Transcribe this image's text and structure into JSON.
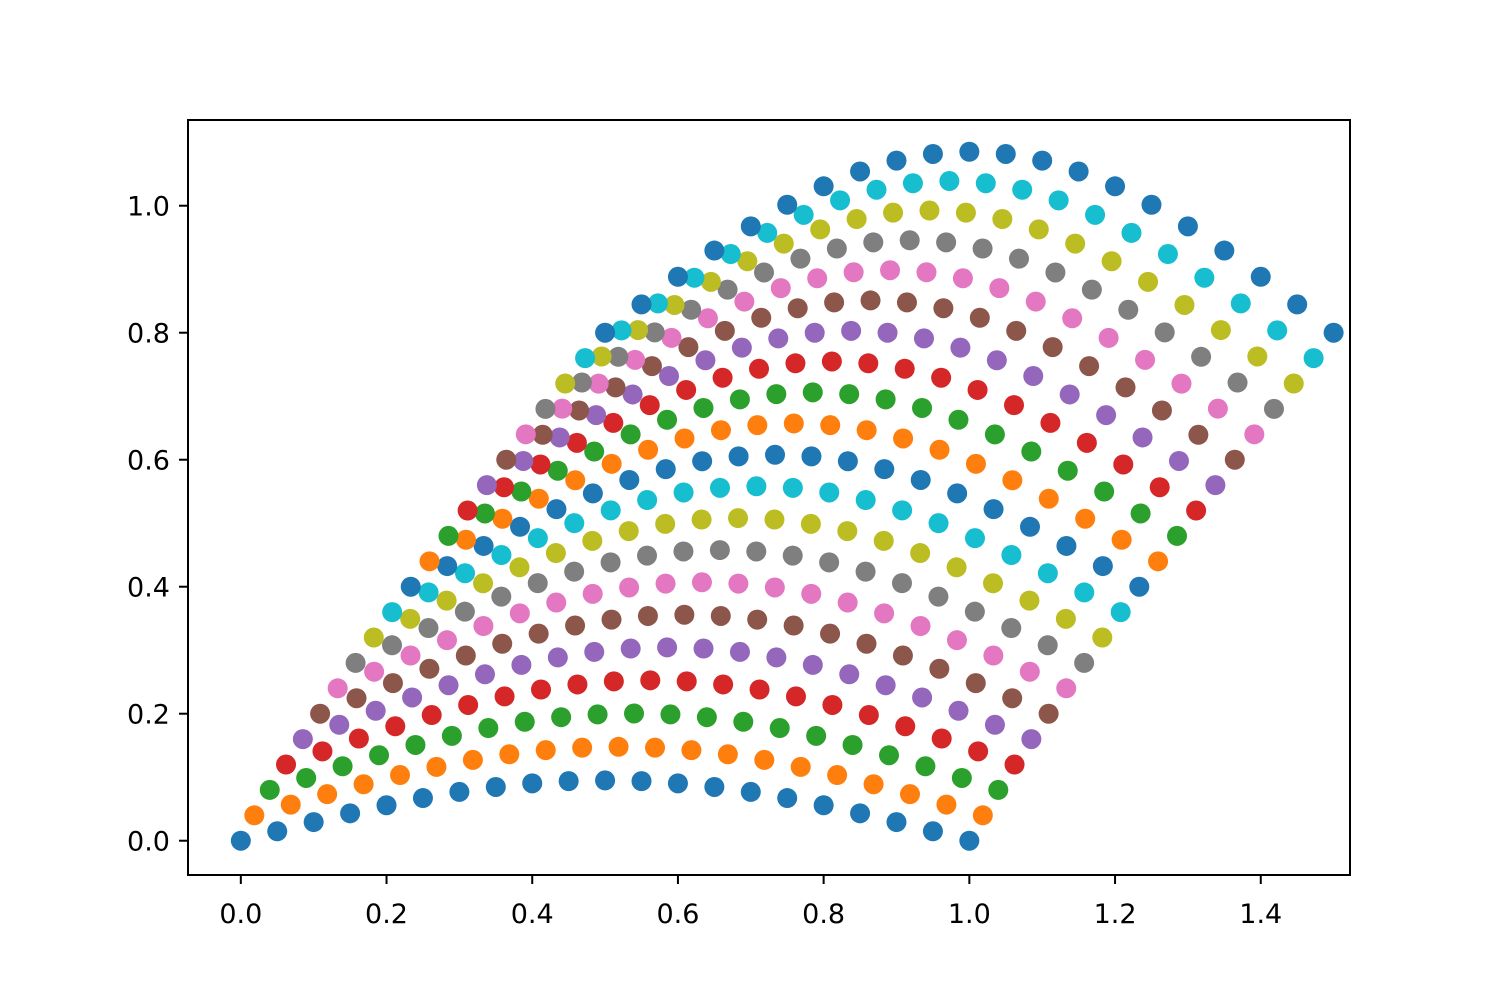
{
  "chart_data": {
    "type": "scatter",
    "title": "",
    "xlabel": "",
    "ylabel": "",
    "xlim": [
      -0.0725,
      1.5225
    ],
    "ylim": [
      -0.054,
      1.135
    ],
    "xticks": [
      0.0,
      0.2,
      0.4,
      0.6,
      0.8,
      1.0,
      1.2,
      1.4
    ],
    "xtick_labels": [
      "0.0",
      "0.2",
      "0.4",
      "0.6",
      "0.8",
      "1.0",
      "1.2",
      "1.4"
    ],
    "yticks": [
      0.0,
      0.2,
      0.4,
      0.6,
      0.8,
      1.0
    ],
    "ytick_labels": [
      "0.0",
      "0.2",
      "0.4",
      "0.6",
      "0.8",
      "1.0"
    ],
    "grid": false,
    "legend": "none",
    "generator": {
      "rows": 21,
      "cols": 21,
      "x": "c/20 + 0.5*(r/20)^1.1",
      "y": "0.8*(r/20) + 0.38*sin(pi*c/20)*(0.25 + 0.75*r/20)*(1 - 0.25*r/20)"
    },
    "series_colors": [
      "#1f77b4",
      "#ff7f0e",
      "#2ca02c",
      "#d62728",
      "#9467bd",
      "#8c564b",
      "#e377c2",
      "#7f7f7f",
      "#bcbd22",
      "#17becf"
    ]
  }
}
